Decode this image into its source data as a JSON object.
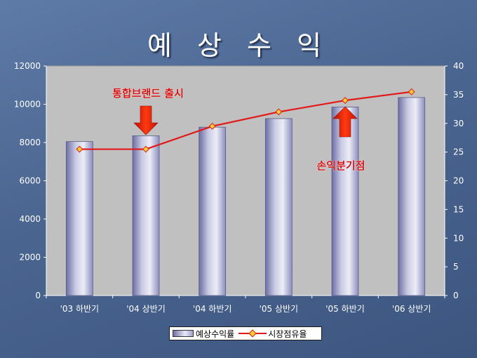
{
  "slide": {
    "title": "예 상 수 익"
  },
  "chart_data": {
    "type": "bar",
    "categories": [
      "'03 하반기",
      "'04 상반기",
      "'04 하반기",
      "'05 상반기",
      "'05 하반기",
      "'06 상반기"
    ],
    "series": [
      {
        "name": "예상수익률",
        "type": "bar",
        "axis": "left",
        "values": [
          8050,
          8350,
          8800,
          9250,
          9850,
          10350
        ]
      },
      {
        "name": "시장점유율",
        "type": "line",
        "axis": "right",
        "values": [
          25.5,
          25.5,
          29.5,
          32,
          34,
          35.5
        ]
      }
    ],
    "y_left": {
      "range": [
        0,
        12000
      ],
      "ticks": [
        "0",
        "2000",
        "4000",
        "6000",
        "8000",
        "10000",
        "12000"
      ]
    },
    "y_right": {
      "range": [
        0,
        40
      ],
      "ticks": [
        "0",
        "5",
        "10",
        "15",
        "20",
        "25",
        "30",
        "35",
        "40"
      ]
    },
    "grid": false,
    "legend_position": "bottom",
    "annotations": [
      {
        "text": "통합브랜드 출시",
        "category": "'04 상반기",
        "arrow": "down"
      },
      {
        "text": "손익분기점",
        "category": "'05 하반기",
        "arrow": "up"
      }
    ],
    "colors": {
      "plot_bg": "#c0c0c0",
      "bar": "#9fa1cc",
      "line": "#e31818",
      "marker": "#f4d030",
      "annotation": "#d01414"
    }
  }
}
